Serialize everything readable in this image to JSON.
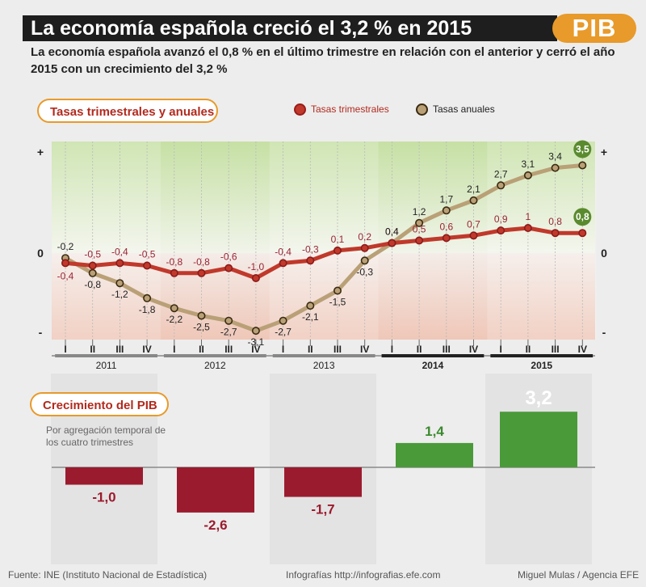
{
  "header": {
    "title": "La economía española creció el 3,2 % en 2015",
    "badge": "PIB",
    "subtitle": "La economía española avanzó el 0,8 % en el último trimestre en relación con el anterior y cerró el año 2015 con un crecimiento del 3,2 %"
  },
  "section_top": {
    "title": "Tasas trimestrales y anuales",
    "legend": [
      {
        "label": "Tasas trimestrales",
        "color": "#c0392b"
      },
      {
        "label": "Tasas anuales",
        "color": "#b9a077"
      }
    ]
  },
  "section_bottom": {
    "title": "Crecimiento del PIB",
    "note": "Por agregación temporal de los cuatro trimestres"
  },
  "footer": {
    "source": "Fuente: INE (Instituto Nacional de Estadística)",
    "web": "Infografías http://infografias.efe.com",
    "author": "Miguel Mulas / Agencia EFE"
  },
  "chart_data": [
    {
      "type": "line",
      "title": "Tasas trimestrales y anuales",
      "x": [
        "I",
        "II",
        "III",
        "IV",
        "I",
        "II",
        "III",
        "IV",
        "I",
        "II",
        "III",
        "IV",
        "I",
        "II",
        "III",
        "IV",
        "I",
        "II",
        "III",
        "IV"
      ],
      "years": [
        "2011",
        "2012",
        "2013",
        "2014",
        "2015"
      ],
      "years_bold": [
        false,
        false,
        false,
        true,
        true
      ],
      "y_axis_labels": {
        "top": "+",
        "zero": "0",
        "bottom": "-"
      },
      "series": [
        {
          "name": "Tasas trimestrales",
          "color": "#c0392b",
          "text_color": "#9b2335",
          "values": [
            -0.4,
            -0.5,
            -0.4,
            -0.5,
            -0.8,
            -0.8,
            -0.6,
            -1.0,
            -0.4,
            -0.3,
            0.1,
            0.2,
            0.4,
            0.5,
            0.6,
            0.7,
            0.9,
            1.0,
            0.8,
            0.8
          ],
          "labels": [
            "-0,4",
            "-0,5",
            "-0,4",
            "-0,5",
            "-0,8",
            "-0,8",
            "-0,6",
            "-1,0",
            "-0,4",
            "-0,3",
            "0,1",
            "0,2",
            "0,4",
            "0,5",
            "0,6",
            "0,7",
            "0,9",
            "1",
            "0,8",
            "0,8"
          ]
        },
        {
          "name": "Tasas anuales",
          "color": "#b9a077",
          "text_color": "#222",
          "values": [
            -0.2,
            -0.8,
            -1.2,
            -1.8,
            -2.2,
            -2.5,
            -2.7,
            -3.1,
            -2.7,
            -2.1,
            -1.5,
            -0.3,
            0.4,
            1.2,
            1.7,
            2.1,
            2.7,
            3.1,
            3.4,
            3.5
          ],
          "labels": [
            "-0,2",
            "-0,8",
            "-1,2",
            "-1,8",
            "-2,2",
            "-2,5",
            "-2,7",
            "-3,1",
            "-2,7",
            "-2,1",
            "-1,5",
            "-0,3",
            "0,4",
            "1,2",
            "1,7",
            "2,1",
            "2,7",
            "3,1",
            "3,4",
            "3,5"
          ]
        }
      ],
      "highlighted_last": {
        "quarterly": "0,8",
        "annual": "3,5",
        "color": "#5a8a2e"
      }
    },
    {
      "type": "bar",
      "title": "Crecimiento del PIB",
      "categories": [
        "2011",
        "2012",
        "2013",
        "2014",
        "2015"
      ],
      "values": [
        -1.0,
        -2.6,
        -1.7,
        1.4,
        3.2
      ],
      "labels": [
        "-1,0",
        "-2,6",
        "-1,7",
        "1,4",
        "3,2"
      ],
      "colors": {
        "negative": "#9b1b2e",
        "positive": "#4a9a3a"
      }
    }
  ]
}
